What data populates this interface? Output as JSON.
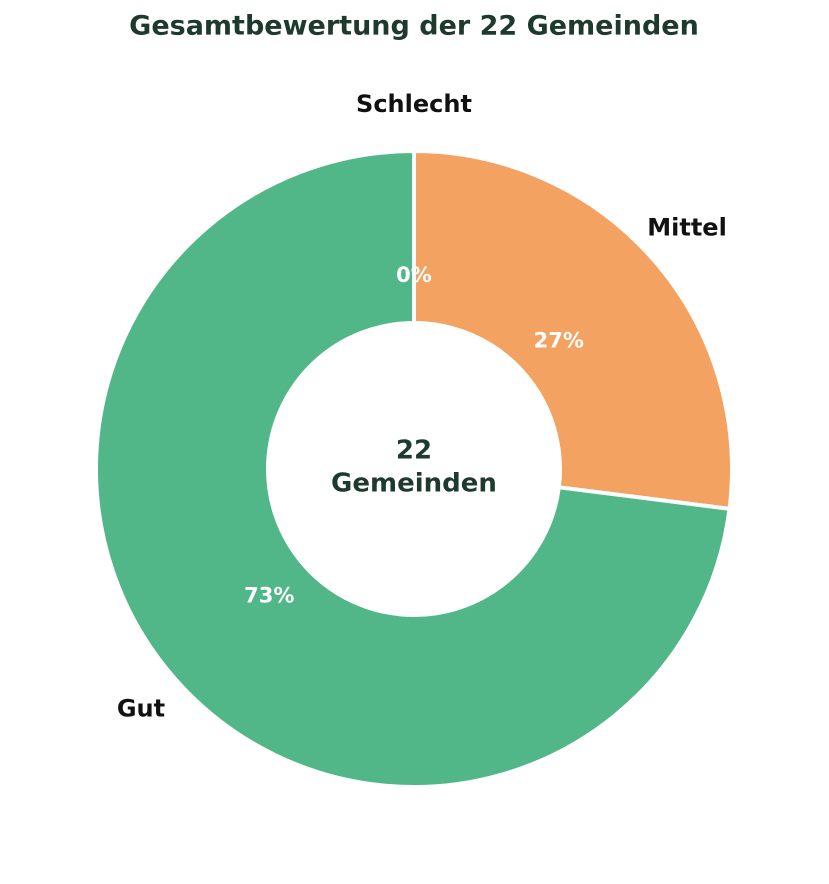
{
  "chart_data": {
    "type": "donut",
    "title": "Gesamtbewertung der 22 Gemeinden",
    "categories": [
      "Schlecht",
      "Mittel",
      "Gut"
    ],
    "values": [
      0,
      27,
      73
    ],
    "value_labels": [
      "0%",
      "27%",
      "73%"
    ],
    "colors": [
      "#e76f51",
      "#f4a261",
      "#52b788"
    ],
    "center_label": [
      "22",
      "Gemeinden"
    ]
  }
}
